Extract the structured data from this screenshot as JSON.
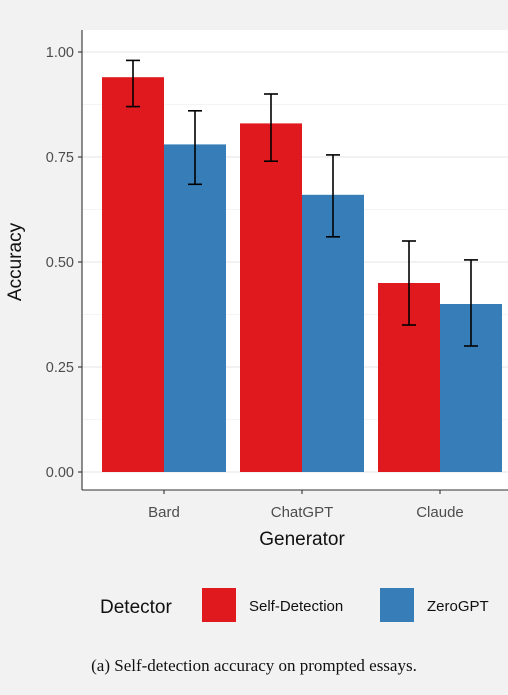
{
  "chart_data": {
    "type": "bar",
    "title": "",
    "xlabel": "Generator",
    "ylabel": "Accuracy",
    "categories": [
      "Bard",
      "ChatGPT",
      "Claude"
    ],
    "series": [
      {
        "name": "Self-Detection",
        "color": "#e0191e",
        "values": [
          0.94,
          0.83,
          0.45
        ],
        "error_low": [
          0.87,
          0.74,
          0.35
        ],
        "error_high": [
          0.98,
          0.9,
          0.55
        ]
      },
      {
        "name": "ZeroGPT",
        "color": "#377eb8",
        "values": [
          0.78,
          0.66,
          0.4
        ],
        "error_low": [
          0.685,
          0.56,
          0.3
        ],
        "error_high": [
          0.86,
          0.755,
          0.505
        ]
      }
    ],
    "ylim": [
      0,
      1.0
    ],
    "yticks": [
      "0.00",
      "0.25",
      "0.50",
      "0.75",
      "1.00"
    ],
    "grid": true,
    "legend_title": "Detector",
    "legend_position": "bottom"
  },
  "caption": "(a) Self-detection accuracy on prompted essays."
}
